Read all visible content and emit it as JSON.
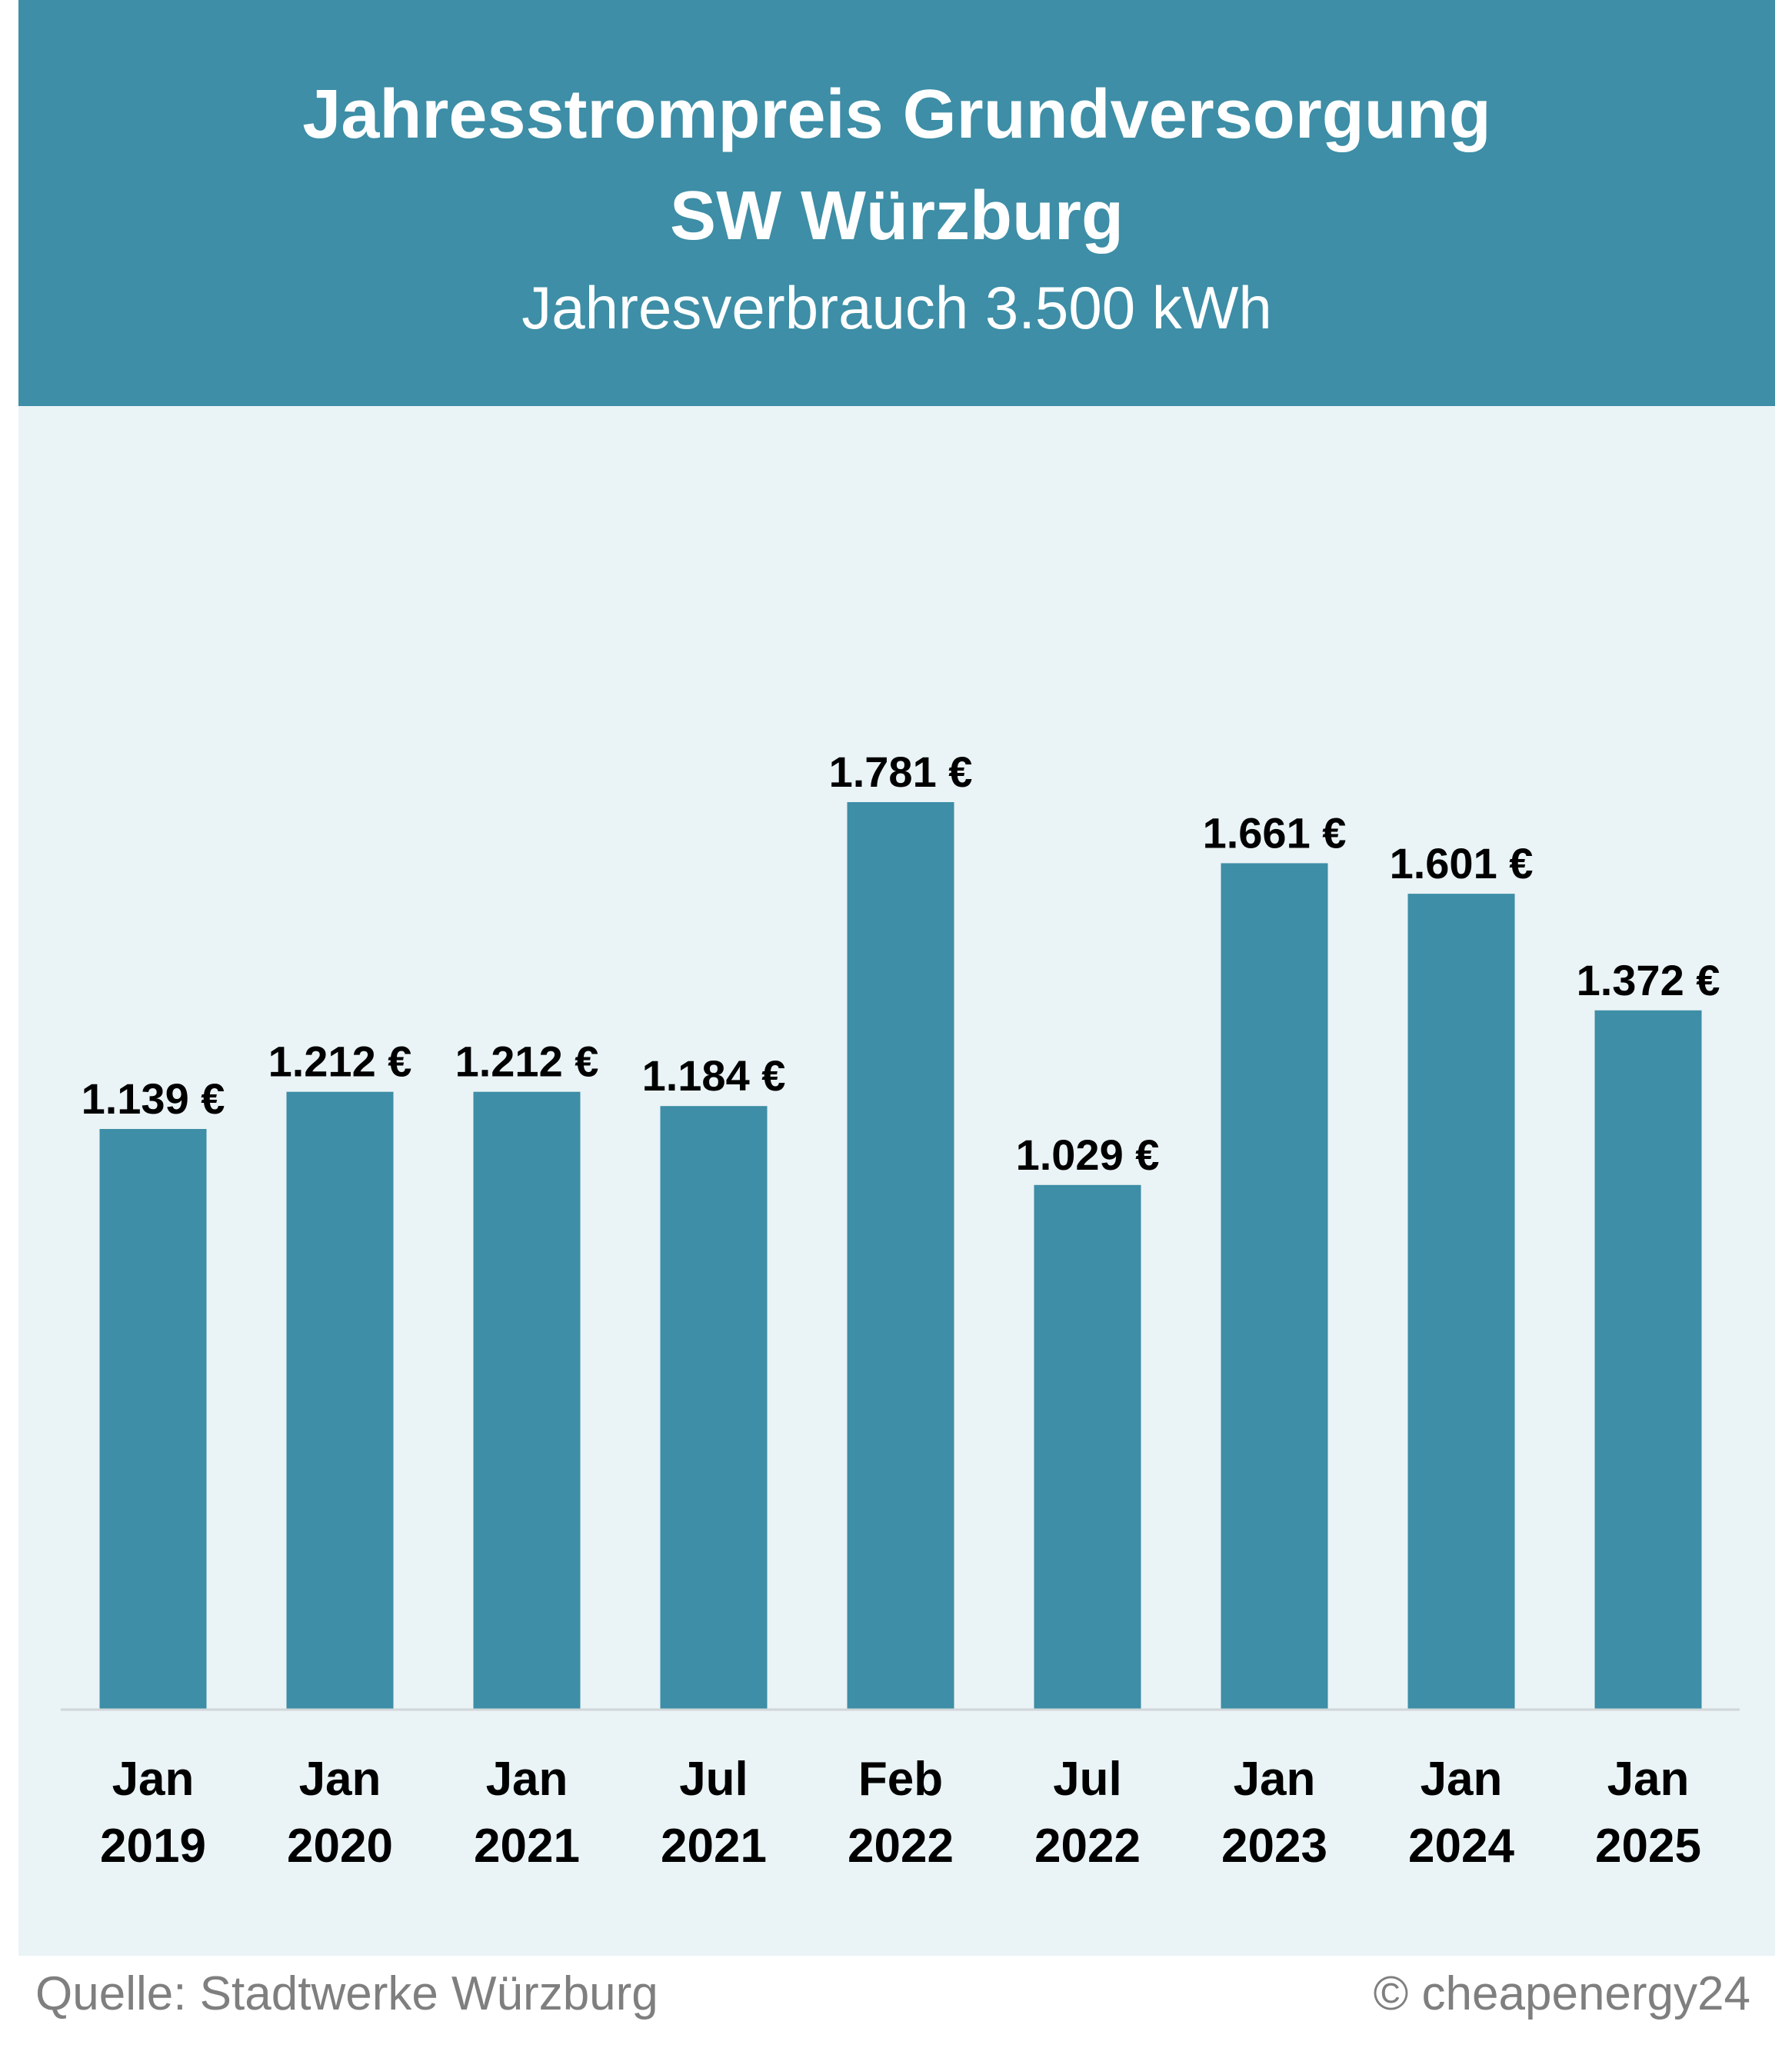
{
  "header": {
    "title_line1": "Jahresstrompreis Grundversorgung",
    "title_line2": "SW Würzburg",
    "subtitle": "Jahresverbrauch 3.500 kWh"
  },
  "footer": {
    "source": "Quelle: Stadtwerke Würzburg",
    "copyright": "© cheapenergy24"
  },
  "colors": {
    "header_bg": "#3d8ea6",
    "bar": "#3d8ea6",
    "panel_bg": "#eaf3f6",
    "baseline": "#d0d6d8"
  },
  "chart_data": {
    "type": "bar",
    "title": "Jahresstrompreis Grundversorgung SW Würzburg",
    "subtitle": "Jahresverbrauch 3.500 kWh",
    "xlabel": "",
    "ylabel": "",
    "grid": false,
    "categories": [
      [
        "Jan",
        "2019"
      ],
      [
        "Jan",
        "2020"
      ],
      [
        "Jan",
        "2021"
      ],
      [
        "Jul",
        "2021"
      ],
      [
        "Feb",
        "2022"
      ],
      [
        "Jul",
        "2022"
      ],
      [
        "Jan",
        "2023"
      ],
      [
        "Jan",
        "2024"
      ],
      [
        "Jan",
        "2025"
      ]
    ],
    "values": [
      1139,
      1212,
      1212,
      1184,
      1781,
      1029,
      1661,
      1601,
      1372
    ],
    "data_labels": [
      "1.139 €",
      "1.212 €",
      "1.212 €",
      "1.184 €",
      "1.781 €",
      "1.029 €",
      "1.661 €",
      "1.601 €",
      "1.372 €"
    ],
    "ylim": [
      0,
      1781
    ]
  }
}
